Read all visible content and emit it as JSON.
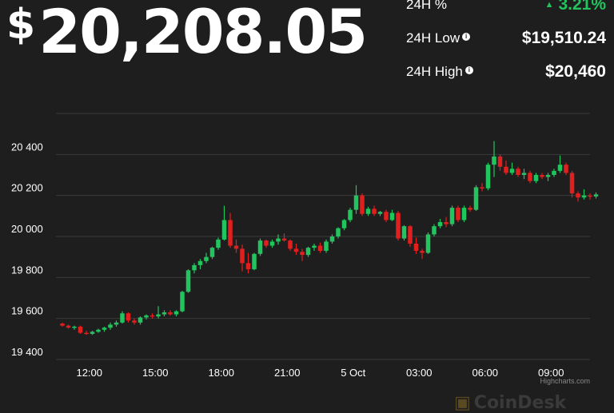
{
  "price": {
    "currency": "$",
    "value": "20,208.05"
  },
  "stats": [
    {
      "label": "24H %",
      "value": "3.21%",
      "info": false,
      "trend": "up"
    },
    {
      "label": "24H Low",
      "value": "$19,510.24",
      "info": true
    },
    {
      "label": "24H High",
      "value": "$20,460",
      "info": true
    }
  ],
  "colors": {
    "up": "#22c45e",
    "down": "#e0201e",
    "grid": "#3a3a3a",
    "background": "#1e1e1e"
  },
  "credit": "Highcharts.com",
  "brand": "CoinDesk",
  "chart_data": {
    "type": "candlestick",
    "title": "",
    "xlabel": "",
    "ylabel": "",
    "ylim": [
      19400,
      20600
    ],
    "yticks": [
      19400,
      19600,
      19800,
      20000,
      20200,
      20400
    ],
    "ytick_labels": [
      "19 400",
      "19 600",
      "19 800",
      "20 000",
      "20 200",
      "20 400"
    ],
    "xticks": [
      "12:00",
      "15:00",
      "18:00",
      "21:00",
      "5 Oct",
      "03:00",
      "06:00",
      "09:00"
    ],
    "xtick_positions": [
      4.5,
      15.5,
      26.5,
      37.5,
      48.5,
      59.5,
      70.5,
      81.5
    ],
    "grid": true,
    "interval": "15min",
    "candles": [
      [
        19575,
        19580,
        19560,
        19565
      ],
      [
        19565,
        19570,
        19550,
        19555
      ],
      [
        19555,
        19565,
        19545,
        19560
      ],
      [
        19560,
        19565,
        19525,
        19530
      ],
      [
        19530,
        19540,
        19520,
        19525
      ],
      [
        19525,
        19540,
        19520,
        19535
      ],
      [
        19535,
        19550,
        19530,
        19545
      ],
      [
        19545,
        19560,
        19535,
        19555
      ],
      [
        19555,
        19580,
        19545,
        19570
      ],
      [
        19570,
        19590,
        19560,
        19580
      ],
      [
        19580,
        19635,
        19575,
        19625
      ],
      [
        19625,
        19630,
        19580,
        19590
      ],
      [
        19590,
        19600,
        19570,
        19580
      ],
      [
        19580,
        19610,
        19570,
        19605
      ],
      [
        19605,
        19620,
        19595,
        19615
      ],
      [
        19615,
        19625,
        19600,
        19610
      ],
      [
        19610,
        19660,
        19600,
        19620
      ],
      [
        19620,
        19640,
        19610,
        19630
      ],
      [
        19630,
        19640,
        19615,
        19620
      ],
      [
        19620,
        19640,
        19610,
        19635
      ],
      [
        19635,
        19735,
        19630,
        19730
      ],
      [
        19730,
        19840,
        19725,
        19835
      ],
      [
        19835,
        19870,
        19820,
        19860
      ],
      [
        19860,
        19890,
        19840,
        19880
      ],
      [
        19880,
        19920,
        19870,
        19900
      ],
      [
        19900,
        19950,
        19890,
        19945
      ],
      [
        19945,
        19995,
        19935,
        19985
      ],
      [
        19985,
        20150,
        19980,
        20080
      ],
      [
        20080,
        20115,
        19945,
        19955
      ],
      [
        19955,
        19985,
        19920,
        19940
      ],
      [
        19940,
        19960,
        19830,
        19870
      ],
      [
        19870,
        19920,
        19820,
        19840
      ],
      [
        19840,
        19920,
        19835,
        19915
      ],
      [
        19915,
        19990,
        19905,
        19980
      ],
      [
        19980,
        19985,
        19945,
        19955
      ],
      [
        19955,
        19985,
        19945,
        19975
      ],
      [
        19975,
        20010,
        19960,
        19990
      ],
      [
        19990,
        20015,
        19975,
        19980
      ],
      [
        19980,
        19985,
        19930,
        19940
      ],
      [
        19940,
        19965,
        19910,
        19925
      ],
      [
        19925,
        19940,
        19880,
        19910
      ],
      [
        19910,
        19950,
        19900,
        19945
      ],
      [
        19945,
        19965,
        19930,
        19955
      ],
      [
        19955,
        19970,
        19920,
        19930
      ],
      [
        19930,
        19985,
        19920,
        19975
      ],
      [
        19975,
        20010,
        19965,
        20000
      ],
      [
        20000,
        20045,
        19990,
        20040
      ],
      [
        20040,
        20085,
        20030,
        20080
      ],
      [
        20080,
        20140,
        20070,
        20130
      ],
      [
        20130,
        20250,
        20110,
        20200
      ],
      [
        20200,
        20210,
        20100,
        20110
      ],
      [
        20110,
        20145,
        20100,
        20135
      ],
      [
        20135,
        20150,
        20100,
        20110
      ],
      [
        20110,
        20125,
        20100,
        20120
      ],
      [
        20120,
        20130,
        20070,
        20080
      ],
      [
        20080,
        20130,
        20075,
        20115
      ],
      [
        20115,
        20125,
        19980,
        19990
      ],
      [
        19990,
        20055,
        19980,
        20050
      ],
      [
        20050,
        20055,
        19950,
        19965
      ],
      [
        19965,
        19995,
        19915,
        19930
      ],
      [
        19930,
        19940,
        19890,
        19920
      ],
      [
        19920,
        20020,
        19915,
        20010
      ],
      [
        20010,
        20060,
        20000,
        20050
      ],
      [
        20050,
        20085,
        20040,
        20070
      ],
      [
        20070,
        20095,
        20045,
        20060
      ],
      [
        20060,
        20150,
        20050,
        20140
      ],
      [
        20140,
        20150,
        20070,
        20080
      ],
      [
        20080,
        20150,
        20070,
        20140
      ],
      [
        20140,
        20150,
        20120,
        20130
      ],
      [
        20130,
        20250,
        20125,
        20240
      ],
      [
        20240,
        20260,
        20220,
        20235
      ],
      [
        20235,
        20360,
        20225,
        20350
      ],
      [
        20350,
        20465,
        20290,
        20390
      ],
      [
        20390,
        20400,
        20320,
        20340
      ],
      [
        20340,
        20370,
        20300,
        20310
      ],
      [
        20310,
        20360,
        20300,
        20330
      ],
      [
        20330,
        20340,
        20290,
        20300
      ],
      [
        20300,
        20330,
        20280,
        20310
      ],
      [
        20310,
        20320,
        20260,
        20270
      ],
      [
        20270,
        20310,
        20260,
        20300
      ],
      [
        20300,
        20310,
        20280,
        20290
      ],
      [
        20290,
        20310,
        20270,
        20300
      ],
      [
        20300,
        20330,
        20290,
        20320
      ],
      [
        20320,
        20395,
        20310,
        20350
      ],
      [
        20350,
        20360,
        20300,
        20310
      ],
      [
        20310,
        20320,
        20190,
        20210
      ],
      [
        20210,
        20220,
        20170,
        20190
      ],
      [
        20190,
        20230,
        20180,
        20200
      ],
      [
        20200,
        20210,
        20180,
        20195
      ],
      [
        20195,
        20215,
        20185,
        20205
      ]
    ]
  }
}
